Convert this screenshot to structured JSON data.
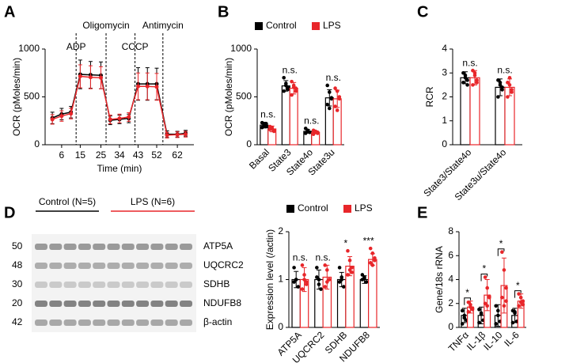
{
  "panel_labels": [
    "A",
    "B",
    "C",
    "D",
    "E"
  ],
  "blot": {
    "groups": [
      {
        "label": "Control (N=5)",
        "color": "#000000"
      },
      {
        "label": "LPS (N=6)",
        "color": "#e8262a"
      }
    ],
    "rows": [
      {
        "kda": "50",
        "protein": "ATP5A"
      },
      {
        "kda": "48",
        "protein": "UQCRC2"
      },
      {
        "kda": "30",
        "protein": "SDHB"
      },
      {
        "kda": "20",
        "protein": "NDUFB8"
      },
      {
        "kda": "42",
        "protein": "β-actin"
      }
    ]
  },
  "chart_data": [
    {
      "type": "line",
      "x_label": "Time (min)",
      "y_label": "OCR (pMoles/min)",
      "x": [
        1.5,
        6,
        10.5,
        15,
        20,
        25,
        29.5,
        34,
        38.5,
        43,
        47.5,
        52,
        57,
        62,
        66
      ],
      "xlim": [
        -2,
        70
      ],
      "xticks": [
        6,
        15,
        25,
        34,
        43,
        52,
        62
      ],
      "ylim": [
        0,
        1000
      ],
      "yticks": [
        0,
        500,
        1000
      ],
      "annotations": [
        {
          "text": "ADP",
          "x": 13
        },
        {
          "text": "Oligomycin",
          "x": 27.5
        },
        {
          "text": "CCCP",
          "x": 41.5
        },
        {
          "text": "Antimycin",
          "x": 55
        }
      ],
      "series": [
        {
          "color": "#000000",
          "values": [
            280,
            320,
            340,
            735,
            730,
            725,
            255,
            265,
            275,
            635,
            635,
            635,
            110,
            110,
            120
          ],
          "errors": [
            60,
            60,
            60,
            150,
            140,
            140,
            45,
            45,
            45,
            170,
            170,
            165,
            35,
            30,
            30
          ]
        },
        {
          "color": "#e8262a",
          "values": [
            265,
            300,
            325,
            715,
            705,
            700,
            265,
            275,
            290,
            610,
            610,
            605,
            100,
            105,
            110
          ],
          "errors": [
            50,
            55,
            55,
            120,
            120,
            115,
            45,
            45,
            45,
            140,
            140,
            140,
            30,
            30,
            30
          ]
        }
      ]
    },
    {
      "type": "bar",
      "y_label": "OCR (pMoles/min)",
      "legend": "top",
      "categories": [
        "Basal",
        "State3",
        "State4o",
        "State3u"
      ],
      "ylim": [
        0,
        1000
      ],
      "yticks": [
        0,
        500,
        1000
      ],
      "annotations": [
        "n.s.",
        "n.s.",
        "n.s.",
        "n.s."
      ],
      "series": [
        {
          "name": "Control",
          "color": "#000000",
          "values": [
            205,
            615,
            140,
            490
          ],
          "errors": [
            30,
            55,
            20,
            85
          ],
          "points": [
            [
              230,
              210,
              190,
              180,
              200,
              220
            ],
            [
              700,
              640,
              580,
              560,
              620,
              600
            ],
            [
              170,
              150,
              130,
              120,
              140,
              130
            ],
            [
              620,
              550,
              480,
              420,
              380,
              490
            ]
          ]
        },
        {
          "name": "LPS",
          "color": "#e8262a",
          "values": [
            165,
            590,
            130,
            480
          ],
          "errors": [
            30,
            60,
            15,
            90
          ],
          "points": [
            [
              190,
              170,
              150,
              160,
              180,
              140
            ],
            [
              660,
              620,
              560,
              520,
              600,
              590
            ],
            [
              150,
              130,
              120,
              110,
              140,
              130
            ],
            [
              590,
              560,
              480,
              400,
              360,
              500
            ]
          ]
        }
      ]
    },
    {
      "type": "bar",
      "y_label": "RCR",
      "categories": [
        "State3/State4o",
        "State3u/State4o"
      ],
      "ylim": [
        0,
        4
      ],
      "yticks": [
        0,
        1,
        2,
        3,
        4
      ],
      "annotations": [
        "n.s.",
        "n.s."
      ],
      "series": [
        {
          "color": "#000000",
          "values": [
            2.8,
            2.4
          ],
          "errors": [
            0.25,
            0.35
          ],
          "points": [
            [
              3.0,
              2.9,
              2.7,
              2.6,
              2.8,
              2.5
            ],
            [
              2.7,
              2.5,
              2.3,
              2.0,
              2.6,
              2.4
            ]
          ]
        },
        {
          "color": "#e8262a",
          "values": [
            2.8,
            2.4
          ],
          "errors": [
            0.3,
            0.35
          ],
          "points": [
            [
              3.1,
              2.9,
              2.6,
              2.5,
              3.0,
              2.7
            ],
            [
              2.6,
              2.8,
              2.2,
              2.0,
              2.5,
              2.3
            ]
          ]
        }
      ]
    },
    {
      "type": "bar",
      "y_label": "Expression level (/actin)",
      "legend": "top",
      "categories": [
        "ATP5A",
        "UQCRC2",
        "SDHB",
        "NDUFB8"
      ],
      "ylim": [
        0,
        2
      ],
      "yticks": [
        0,
        1,
        2
      ],
      "annotations": [
        "n.s.",
        "n.s.",
        "*",
        "***"
      ],
      "series": [
        {
          "name": "Control",
          "color": "#000000",
          "values": [
            1.0,
            1.0,
            1.0,
            1.0
          ],
          "errors": [
            0.17,
            0.2,
            0.15,
            0.08
          ],
          "points": [
            [
              1.25,
              1.0,
              0.85,
              0.95,
              1.0
            ],
            [
              1.25,
              0.9,
              0.8,
              1.05,
              1.0
            ],
            [
              1.25,
              1.05,
              0.85,
              0.95,
              1.0
            ],
            [
              1.1,
              1.05,
              0.95,
              1.0,
              1.02
            ]
          ]
        },
        {
          "name": "LPS",
          "color": "#e8262a",
          "values": [
            1.0,
            1.05,
            1.28,
            1.42
          ],
          "errors": [
            0.25,
            0.25,
            0.2,
            0.12
          ],
          "points": [
            [
              1.3,
              1.1,
              0.9,
              0.8,
              1.0,
              0.95
            ],
            [
              1.3,
              1.2,
              1.0,
              0.85,
              0.95,
              1.0
            ],
            [
              1.6,
              1.4,
              1.25,
              1.1,
              1.2,
              1.15
            ],
            [
              1.65,
              1.55,
              1.45,
              1.35,
              1.3,
              1.4
            ]
          ]
        }
      ]
    },
    {
      "type": "bar",
      "y_label": "Gene/18s rRNA",
      "brackets": true,
      "categories": [
        "TNFα",
        "IL-1β",
        "IL-10",
        "IL-6"
      ],
      "ylim": [
        0,
        8
      ],
      "yticks": [
        0,
        2,
        4,
        6,
        8
      ],
      "annotations": [
        "*",
        "*",
        "*",
        "*"
      ],
      "series": [
        {
          "color": "#000000",
          "values": [
            1.0,
            1.0,
            1.0,
            1.0
          ],
          "errors": [
            0.6,
            0.7,
            0.9,
            0.6
          ],
          "points": [
            [
              1.4,
              1.0,
              0.6,
              0.3,
              0.8
            ],
            [
              1.5,
              1.2,
              0.6,
              0.4,
              1.1
            ],
            [
              1.8,
              1.4,
              0.5,
              0.3,
              1.0
            ],
            [
              1.4,
              1.2,
              0.5,
              0.4,
              1.3
            ]
          ]
        },
        {
          "color": "#e8262a",
          "values": [
            1.7,
            2.7,
            3.5,
            2.2
          ],
          "errors": [
            0.5,
            1.3,
            2.3,
            0.6
          ],
          "points": [
            [
              2.1,
              1.9,
              1.6,
              1.3,
              1.7,
              1.5
            ],
            [
              4.2,
              3.3,
              2.6,
              2.0,
              1.8,
              2.5
            ],
            [
              6.3,
              4.8,
              3.3,
              2.5,
              1.8,
              2.2
            ],
            [
              2.8,
              2.5,
              2.2,
              1.8,
              2.1,
              1.9
            ]
          ]
        }
      ]
    }
  ]
}
